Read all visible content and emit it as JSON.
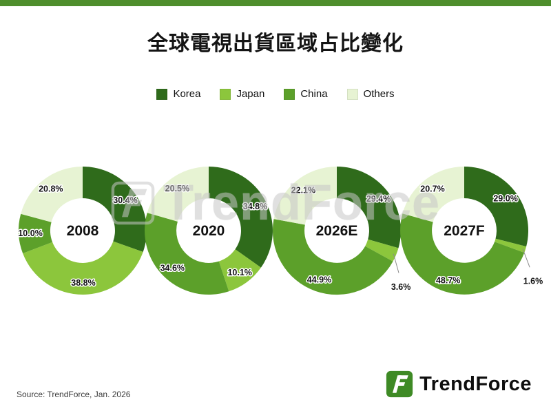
{
  "title": "全球電視出貨區域占比變化",
  "source": "Source: TrendForce, Jan. 2026",
  "watermark": "TrendForce",
  "logo": {
    "text": "TrendForce"
  },
  "colors": {
    "top_bar": "#4e8e2c",
    "logo_green": "#3e8a25",
    "label_text": "#111111",
    "callout_line": "#8a8a8a"
  },
  "chart_data": {
    "type": "pie",
    "subtype": "donut",
    "title": "全球電視出貨區域占比變化",
    "unit": "%",
    "legend_position": "top",
    "series_labels": [
      "Korea",
      "Japan",
      "China",
      "Others"
    ],
    "series_colors": [
      "#2f6b1b",
      "#8cc63c",
      "#5ca02a",
      "#e7f3d3"
    ],
    "donuts": [
      {
        "label": "2008",
        "values": [
          30.4,
          38.8,
          10.0,
          20.8
        ]
      },
      {
        "label": "2020",
        "values": [
          34.8,
          10.1,
          34.6,
          20.5
        ]
      },
      {
        "label": "2026E",
        "values": [
          29.4,
          3.6,
          44.9,
          22.1
        ]
      },
      {
        "label": "2027F",
        "values": [
          29.0,
          1.6,
          48.7,
          20.7
        ]
      }
    ]
  }
}
